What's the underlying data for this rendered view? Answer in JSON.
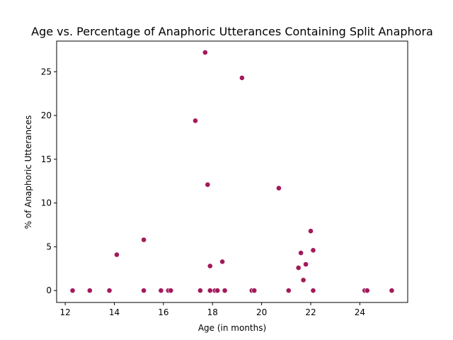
{
  "chart_data": {
    "type": "scatter",
    "title": "Age vs. Percentage of Anaphoric Utterances Containing Split Anaphora",
    "xlabel": "Age (in months)",
    "ylabel": "% of Anaphoric Utterances",
    "xlim": [
      11.65,
      25.95
    ],
    "ylim": [
      -1.36,
      28.5
    ],
    "xticks": [
      12,
      14,
      16,
      18,
      20,
      22,
      24
    ],
    "yticks": [
      0,
      5,
      10,
      15,
      20,
      25
    ],
    "grid": false,
    "legend": "none",
    "marker_color": "#a3195b",
    "points": [
      {
        "x": 12.3,
        "y": 0
      },
      {
        "x": 13.0,
        "y": 0
      },
      {
        "x": 13.8,
        "y": 0
      },
      {
        "x": 14.1,
        "y": 4.1
      },
      {
        "x": 15.2,
        "y": 0
      },
      {
        "x": 15.2,
        "y": 5.8
      },
      {
        "x": 15.9,
        "y": 0
      },
      {
        "x": 16.2,
        "y": 0
      },
      {
        "x": 16.3,
        "y": 0
      },
      {
        "x": 17.3,
        "y": 19.4
      },
      {
        "x": 17.5,
        "y": 0
      },
      {
        "x": 17.7,
        "y": 27.2
      },
      {
        "x": 17.8,
        "y": 12.1
      },
      {
        "x": 17.9,
        "y": 2.8
      },
      {
        "x": 17.9,
        "y": 0
      },
      {
        "x": 18.1,
        "y": 0
      },
      {
        "x": 18.2,
        "y": 0
      },
      {
        "x": 18.4,
        "y": 3.3
      },
      {
        "x": 18.5,
        "y": 0
      },
      {
        "x": 19.2,
        "y": 24.3
      },
      {
        "x": 19.6,
        "y": 0
      },
      {
        "x": 19.7,
        "y": 0
      },
      {
        "x": 20.7,
        "y": 11.7
      },
      {
        "x": 21.1,
        "y": 0
      },
      {
        "x": 21.5,
        "y": 2.6
      },
      {
        "x": 21.6,
        "y": 4.3
      },
      {
        "x": 21.7,
        "y": 1.2
      },
      {
        "x": 21.8,
        "y": 3.0
      },
      {
        "x": 22.0,
        "y": 6.8
      },
      {
        "x": 22.1,
        "y": 4.6
      },
      {
        "x": 22.1,
        "y": 0
      },
      {
        "x": 24.2,
        "y": 0
      },
      {
        "x": 24.3,
        "y": 0
      },
      {
        "x": 25.3,
        "y": 0
      }
    ]
  }
}
